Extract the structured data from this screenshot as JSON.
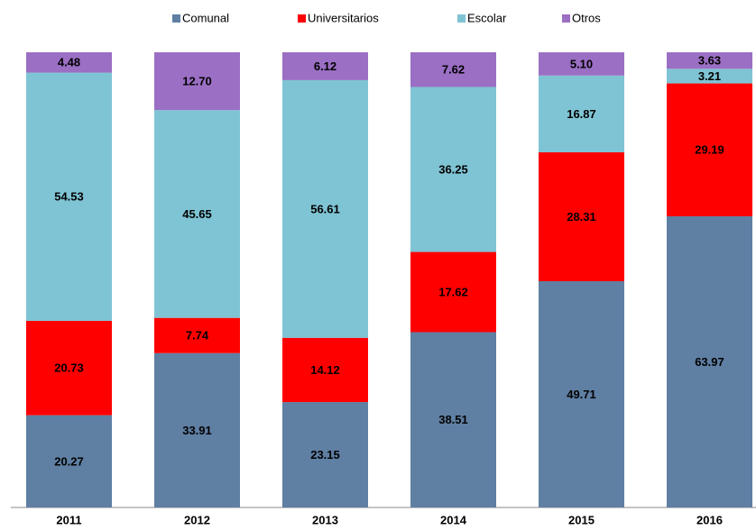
{
  "chart_data": {
    "type": "bar",
    "stacked": true,
    "categories": [
      "2011",
      "2012",
      "2013",
      "2014",
      "2015",
      "2016"
    ],
    "ylim": [
      0,
      100
    ],
    "legend": "top",
    "series": [
      {
        "name": "Comunal",
        "color": "#5f7fa3",
        "values": [
          20.27,
          33.91,
          23.15,
          38.51,
          49.71,
          63.97
        ],
        "value_labels": [
          "20.27",
          "33.91",
          "23.15",
          "38.51",
          "49.71",
          "63.97"
        ]
      },
      {
        "name": "Universitarios",
        "color": "#ff0000",
        "values": [
          20.73,
          7.74,
          14.12,
          17.62,
          28.31,
          29.19
        ],
        "value_labels": [
          "20.73",
          "7.74",
          "14.12",
          "17.62",
          "28.31",
          "29.19"
        ]
      },
      {
        "name": "Escolar",
        "color": "#7fc4d4",
        "values": [
          54.53,
          45.65,
          56.61,
          36.25,
          16.87,
          3.21
        ],
        "value_labels": [
          "54.53",
          "45.65",
          "56.61",
          "36.25",
          "16.87",
          "3.21"
        ]
      },
      {
        "name": "Otros",
        "color": "#9b6fc4",
        "values": [
          4.48,
          12.7,
          6.12,
          7.62,
          5.1,
          3.63
        ],
        "value_labels": [
          "4.48",
          "12.70",
          "6.12",
          "7.62",
          "5.10",
          "3.63"
        ]
      }
    ]
  }
}
